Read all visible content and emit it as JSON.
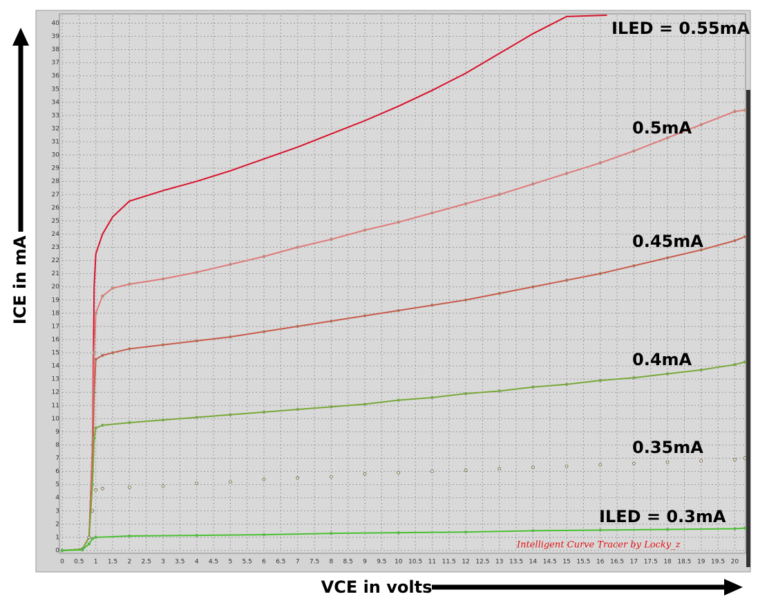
{
  "chart_data": {
    "type": "line",
    "x_label": "VCE in volts",
    "y_label": "ICE in mA",
    "watermark": "Intelligent Curve Tracer by Locky_z",
    "xlim": [
      0,
      20.3
    ],
    "ylim": [
      0,
      40.6
    ],
    "xticks": [
      0,
      0.5,
      1,
      1.5,
      2,
      2.5,
      3,
      3.5,
      4,
      4.5,
      5,
      5.5,
      6,
      6.5,
      7,
      7.5,
      8,
      8.5,
      9,
      9.5,
      10,
      10.5,
      11,
      11.5,
      12,
      12.5,
      13,
      13.5,
      14,
      14.5,
      15,
      15.5,
      16,
      16.5,
      17,
      17.5,
      18,
      18.5,
      19,
      19.5,
      20
    ],
    "yticks": [
      0,
      1,
      2,
      3,
      4,
      5,
      6,
      7,
      8,
      9,
      10,
      11,
      12,
      13,
      14,
      15,
      16,
      17,
      18,
      19,
      20,
      21,
      22,
      23,
      24,
      25,
      26,
      27,
      28,
      29,
      30,
      31,
      32,
      33,
      34,
      35,
      36,
      37,
      38,
      39,
      40
    ],
    "grid": true,
    "series": [
      {
        "name": "ILED = 0.55mA",
        "color": "#d8102a",
        "style": "line",
        "x": [
          0,
          0.6,
          0.8,
          0.9,
          0.95,
          1.0,
          1.2,
          1.5,
          2,
          2.5,
          3,
          4,
          5,
          6,
          7,
          8,
          9,
          10,
          11,
          12,
          13,
          14,
          15,
          16.2
        ],
        "values": [
          0,
          0.1,
          1,
          8,
          20,
          22.5,
          24,
          25.3,
          26.5,
          26.9,
          27.3,
          28,
          28.8,
          29.7,
          30.6,
          31.6,
          32.6,
          33.7,
          34.9,
          36.2,
          37.7,
          39.2,
          40.5,
          40.6
        ]
      },
      {
        "name": "0.5mA",
        "color": "#e07878",
        "style": "line+markers",
        "x": [
          0,
          0.6,
          0.8,
          0.9,
          0.95,
          1.0,
          1.2,
          1.5,
          2,
          3,
          4,
          5,
          6,
          7,
          8,
          9,
          10,
          11,
          12,
          13,
          14,
          15,
          16,
          17,
          18,
          19,
          20,
          20.3
        ],
        "values": [
          0,
          0.1,
          1,
          8,
          15,
          18,
          19.3,
          19.9,
          20.2,
          20.6,
          21.1,
          21.7,
          22.3,
          23,
          23.6,
          24.3,
          24.9,
          25.6,
          26.3,
          27,
          27.8,
          28.6,
          29.4,
          30.3,
          31.3,
          32.3,
          33.3,
          33.4
        ]
      },
      {
        "name": "0.45mA",
        "color": "#c85a4a",
        "style": "line+markers",
        "x": [
          0,
          0.6,
          0.8,
          0.9,
          0.95,
          1.0,
          1.2,
          1.5,
          2,
          3,
          4,
          5,
          6,
          7,
          8,
          9,
          10,
          11,
          12,
          13,
          14,
          15,
          16,
          17,
          18,
          19,
          20,
          20.3
        ],
        "values": [
          0,
          0.1,
          1,
          6,
          12,
          14.5,
          14.8,
          15,
          15.3,
          15.6,
          15.9,
          16.2,
          16.6,
          17,
          17.4,
          17.8,
          18.2,
          18.6,
          19,
          19.5,
          20,
          20.5,
          21,
          21.6,
          22.2,
          22.8,
          23.5,
          23.8
        ]
      },
      {
        "name": "0.4mA",
        "color": "#78a838",
        "style": "line+markers",
        "x": [
          0,
          0.6,
          0.8,
          0.9,
          0.95,
          1.0,
          1.2,
          2,
          3,
          4,
          5,
          6,
          7,
          8,
          9,
          10,
          11,
          12,
          13,
          14,
          15,
          16,
          17,
          18,
          19,
          20,
          20.3
        ],
        "values": [
          0,
          0.1,
          1,
          5,
          8.5,
          9.3,
          9.5,
          9.7,
          9.9,
          10.1,
          10.3,
          10.5,
          10.7,
          10.9,
          11.1,
          11.4,
          11.6,
          11.9,
          12.1,
          12.4,
          12.6,
          12.9,
          13.1,
          13.4,
          13.7,
          14.1,
          14.3
        ]
      },
      {
        "name": "0.35mA",
        "color": "#b86a30",
        "style": "markers",
        "x": [
          0,
          0.6,
          0.8,
          0.9,
          1.0,
          1.2,
          2,
          3,
          4,
          5,
          6,
          7,
          8,
          9,
          10,
          11,
          12,
          13,
          14,
          15,
          16,
          17,
          18,
          19,
          20,
          20.3
        ],
        "values": [
          0,
          0.1,
          1,
          3,
          4.6,
          4.7,
          4.8,
          4.9,
          5.1,
          5.2,
          5.4,
          5.5,
          5.6,
          5.8,
          5.9,
          6,
          6.1,
          6.2,
          6.3,
          6.4,
          6.5,
          6.6,
          6.7,
          6.8,
          6.9,
          7.0
        ]
      },
      {
        "name": "ILED = 0.3mA",
        "color": "#48c030",
        "style": "line+markers",
        "x": [
          0,
          0.6,
          0.8,
          0.9,
          1.0,
          2,
          4,
          6,
          8,
          10,
          12,
          14,
          16,
          18,
          20,
          20.3
        ],
        "values": [
          0,
          0.05,
          0.5,
          0.9,
          1.0,
          1.1,
          1.15,
          1.2,
          1.3,
          1.35,
          1.4,
          1.5,
          1.55,
          1.6,
          1.65,
          1.7
        ]
      }
    ]
  }
}
